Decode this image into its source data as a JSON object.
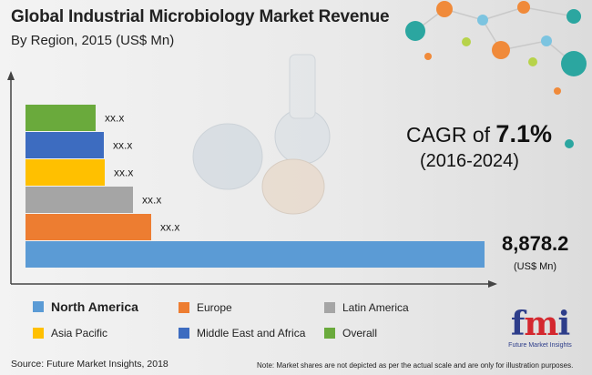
{
  "header": {
    "title": "Global Industrial Microbiology Market Revenue",
    "subtitle": "By Region, 2015 (US$ Mn)"
  },
  "cagr": {
    "prefix": "CAGR of ",
    "value": "7.1%",
    "period": "(2016-2024)"
  },
  "chart_data": {
    "type": "bar",
    "orientation": "horizontal",
    "categories": [
      "Overall",
      "Middle East and Africa",
      "Asia Pacific",
      "Latin America",
      "Europe",
      "North America"
    ],
    "values": [
      null,
      null,
      null,
      null,
      null,
      8878.2
    ],
    "data_labels": [
      "xx.x",
      "xx.x",
      "xx.x",
      "xx.x",
      "xx.x",
      "8,878.2"
    ],
    "colors": [
      "#6aaa3c",
      "#3d6cc0",
      "#ffc000",
      "#a5a5a5",
      "#ed7d31",
      "#5b9bd5"
    ],
    "unit_label": "(US$ Mn)",
    "grid": false,
    "legend_placement": "bottom"
  },
  "legend": {
    "items": [
      {
        "label": "North America",
        "color": "#5b9bd5"
      },
      {
        "label": "Europe",
        "color": "#ed7d31"
      },
      {
        "label": "Latin America",
        "color": "#a5a5a5"
      },
      {
        "label": "Asia Pacific",
        "color": "#ffc000"
      },
      {
        "label": "Middle East and Africa",
        "color": "#3d6cc0"
      },
      {
        "label": "Overall",
        "color": "#6aaa3c"
      }
    ]
  },
  "footer": {
    "source": "Source: Future Market Insights, 2018",
    "note": "Note: Market shares are not depicted as per the actual scale and are only for illustration purposes."
  },
  "logo": {
    "mark_letters": "fmi",
    "text": "Future Market Insights"
  }
}
